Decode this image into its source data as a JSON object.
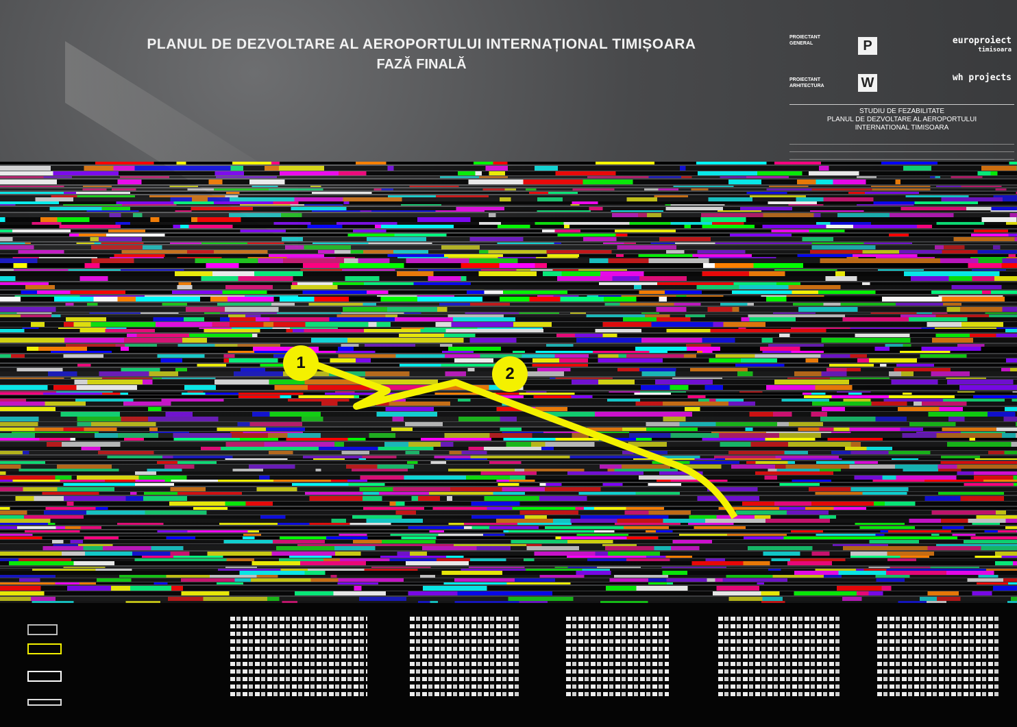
{
  "title": {
    "line1": "PLANUL DE DEZVOLTARE AL AEROPORTULUI INTERNAȚIONAL TIMIȘOARA",
    "line2": "FAZĂ FINALĂ"
  },
  "title_block": {
    "general_designer_label": "PROIECTANT GENERAL",
    "general_designer_brand": "europroiect",
    "general_designer_city": "timisoara",
    "architecture_label": "PROIECTANT ARHITECTURA",
    "architecture_brand": "wh projects",
    "study_line1": "STUDIU DE FEZABILITATE",
    "study_line2": "PLANUL DE DEZVOLTARE AL AEROPORTULUI",
    "study_line3": "INTERNATIONAL TIMISOARA"
  },
  "markers": [
    {
      "label": "1"
    },
    {
      "label": "2"
    }
  ],
  "colors": {
    "route": "#f4f100",
    "marker": "#f4f100",
    "background": "#3a3b3d"
  }
}
